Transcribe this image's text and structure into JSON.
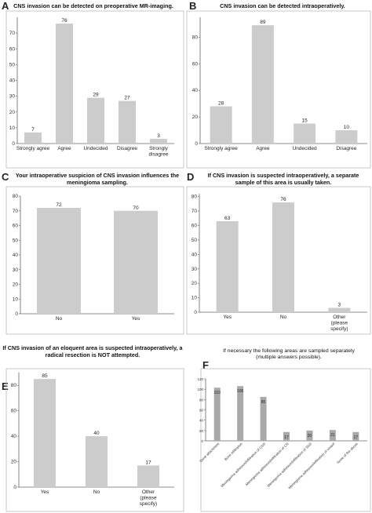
{
  "panels": [
    {
      "letter": "A",
      "title": "CNS invasion can be detected on preoperative MR-imaging."
    },
    {
      "letter": "B",
      "title": "CNS invasion can be detected intraoperatively."
    },
    {
      "letter": "C",
      "title": "Your intraoperative suspicion of CNS invasion influences the meningioma sampling."
    },
    {
      "letter": "D",
      "title": "If CNS invasion is suspected intraoperatively, a separate sample of this area is usually taken."
    },
    {
      "letter": "E",
      "title": "If CNS invasion of an eloquent area is suspected intraoperatively, a radical resection is NOT attempted."
    },
    {
      "letter": "F",
      "title": "If necessary the following areas are sampled separately (multiple answers possible)."
    }
  ],
  "chart_data": [
    {
      "type": "bar",
      "title": "CNS invasion can be detected on preoperative MR-imaging.",
      "categories": [
        "Strongly agree",
        "Agree",
        "Undecided",
        "Disagree",
        "Strongly disagree"
      ],
      "values": [
        7,
        76,
        29,
        27,
        3
      ],
      "ylim": [
        0,
        80
      ],
      "yticks": [
        0,
        10,
        20,
        30,
        40,
        50,
        60,
        70
      ],
      "bar_color": "#cccccc"
    },
    {
      "type": "bar",
      "title": "CNS invasion can be detected intraoperatively.",
      "categories": [
        "Strongly agree",
        "Agree",
        "Undecided",
        "Disagree"
      ],
      "values": [
        28,
        89,
        15,
        10
      ],
      "ylim": [
        0,
        95
      ],
      "yticks": [
        0,
        20,
        40,
        60,
        80
      ],
      "bar_color": "#cccccc"
    },
    {
      "type": "bar",
      "title": "Your intraoperative suspicion of CNS invasion influences the meningioma sampling.",
      "categories": [
        "No",
        "Yes"
      ],
      "values": [
        72,
        70
      ],
      "ylim": [
        0,
        80
      ],
      "yticks": [
        0,
        10,
        20,
        30,
        40,
        50,
        60,
        70,
        80
      ],
      "bar_color": "#cccccc"
    },
    {
      "type": "bar",
      "title": "If CNS invasion is suspected intraoperatively, a separate sample of this area is usually taken.",
      "categories": [
        "Yes",
        "No",
        "Other (please specify)"
      ],
      "values": [
        63,
        76,
        3
      ],
      "ylim": [
        0,
        82
      ],
      "yticks": [
        0,
        10,
        20,
        30,
        40,
        50,
        60,
        70,
        80
      ],
      "bar_color": "#cccccc"
    },
    {
      "type": "bar",
      "title": "If CNS invasion of an eloquent area is suspected intraoperatively, a radical resection is NOT attempted.",
      "categories": [
        "Yes",
        "No",
        "Other (please specify)"
      ],
      "values": [
        85,
        40,
        17
      ],
      "ylim": [
        0,
        90
      ],
      "yticks": [
        0,
        20,
        40,
        60,
        80
      ],
      "bar_color": "#cccccc"
    },
    {
      "type": "bar",
      "title": "If necessary the following areas are sampled separately (multiple answers possible).",
      "categories": [
        "Dural attachment",
        "Bone infiltration",
        "Meningioma adhesion/infiltration of CNS",
        "Meningioma adhesion/infiltration of CN",
        "Meningioma adhesion/infiltration of SNS",
        "Meningioma adhesion/infiltration of vessel",
        "None of the above"
      ],
      "values": [
        103,
        106,
        85,
        17,
        20,
        21,
        17
      ],
      "ylim": [
        0,
        120
      ],
      "yticks": [
        0,
        20,
        40,
        60,
        80,
        100,
        120
      ],
      "bar_color": "#a9a9a9"
    }
  ]
}
